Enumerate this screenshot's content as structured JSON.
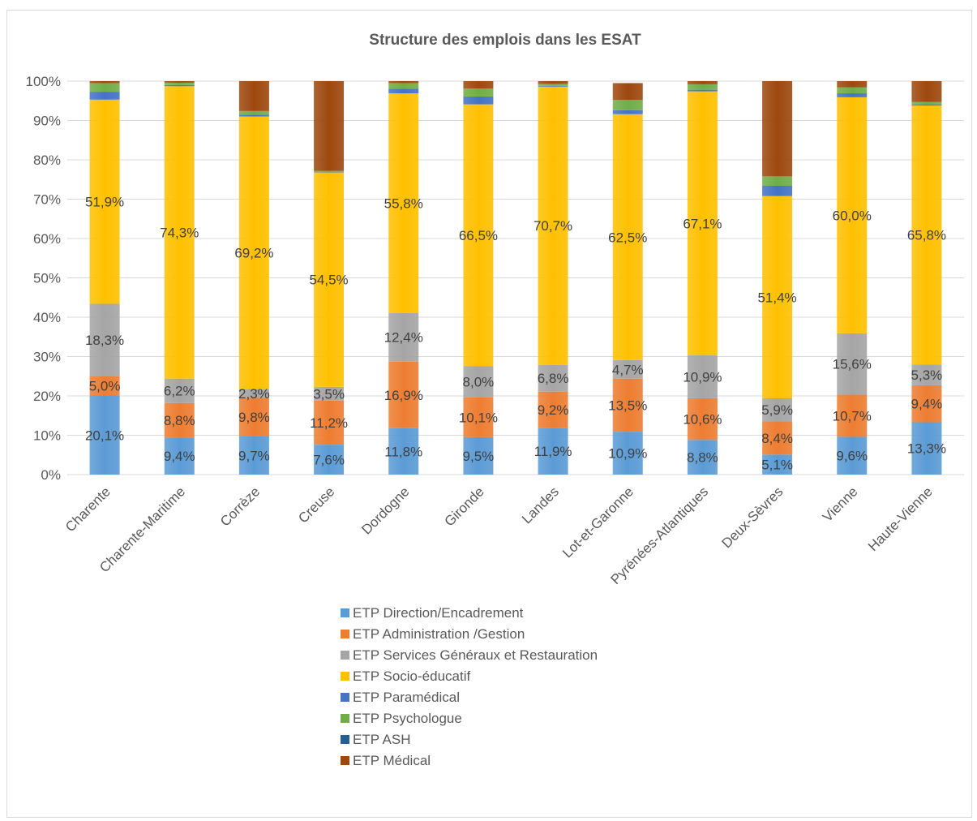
{
  "chart_data": {
    "type": "bar",
    "stacked": true,
    "percent": true,
    "title": "Structure des emplois dans les ESAT",
    "xlabel": "",
    "ylabel": "",
    "ylim": [
      0,
      100
    ],
    "y_ticks": [
      "0%",
      "10%",
      "20%",
      "30%",
      "40%",
      "50%",
      "60%",
      "70%",
      "80%",
      "90%",
      "100%"
    ],
    "grid": true,
    "legend_position": "bottom",
    "categories": [
      "Charente",
      "Charente-Maritime",
      "Corrèze",
      "Creuse",
      "Dordogne",
      "Gironde",
      "Landes",
      "Lot-et-Garonne",
      "Pyrénées-Atlantiques",
      "Deux-Sèvres",
      "Vienne",
      "Haute-Vienne"
    ],
    "series": [
      {
        "name": "ETP Direction/Encadrement",
        "color": "#5b9bd5",
        "values": [
          20.1,
          9.4,
          9.7,
          7.6,
          11.8,
          9.5,
          11.9,
          10.9,
          8.8,
          5.1,
          9.6,
          13.3
        ],
        "labels": [
          "20,1%",
          "9,4%",
          "9,7%",
          "7,6%",
          "11,8%",
          "9,5%",
          "11,9%",
          "10,9%",
          "8,8%",
          "5,1%",
          "9,6%",
          "13,3%"
        ]
      },
      {
        "name": "ETP Administration /Gestion",
        "color": "#ed7d31",
        "values": [
          5.0,
          8.8,
          9.8,
          11.2,
          16.9,
          10.1,
          9.2,
          13.5,
          10.6,
          8.4,
          10.7,
          9.4
        ],
        "labels": [
          "5,0%",
          "8,8%",
          "9,8%",
          "11,2%",
          "16,9%",
          "10,1%",
          "9,2%",
          "13,5%",
          "10,6%",
          "8,4%",
          "10,7%",
          "9,4%"
        ]
      },
      {
        "name": "ETP Services Généraux et Restauration",
        "color": "#a5a5a5",
        "values": [
          18.3,
          6.2,
          2.3,
          3.5,
          12.4,
          8.0,
          6.8,
          4.7,
          10.9,
          5.9,
          15.6,
          5.3
        ],
        "labels": [
          "18,3%",
          "6,2%",
          "2,3%",
          "3,5%",
          "12,4%",
          "8,0%",
          "6,8%",
          "4,7%",
          "10,9%",
          "5,9%",
          "15,6%",
          "5,3%"
        ]
      },
      {
        "name": "ETP Socio-éducatif",
        "color": "#ffc000",
        "values": [
          51.9,
          74.3,
          69.2,
          54.5,
          55.8,
          66.5,
          70.7,
          62.5,
          67.1,
          51.4,
          60.0,
          65.8
        ],
        "labels": [
          "51,9%",
          "74,3%",
          "69,2%",
          "54,5%",
          "55,8%",
          "66,5%",
          "70,7%",
          "62,5%",
          "67,1%",
          "51,4%",
          "60,0%",
          "65,8%"
        ]
      },
      {
        "name": "ETP Paramédical",
        "color": "#4472c4",
        "values": [
          2.0,
          0.3,
          0.5,
          0.1,
          1.2,
          2.0,
          0.2,
          1.0,
          0.4,
          2.6,
          1.0,
          0.3
        ]
      },
      {
        "name": "ETP Psychologue",
        "color": "#70ad47",
        "values": [
          2.2,
          0.6,
          0.9,
          0.3,
          1.4,
          2.0,
          0.5,
          2.6,
          1.4,
          2.4,
          1.5,
          0.6
        ]
      },
      {
        "name": "ETP ASH",
        "color": "#255e91",
        "values": [
          0.0,
          0.0,
          0.0,
          0.0,
          0.0,
          0.0,
          0.0,
          0.0,
          0.0,
          0.0,
          0.0,
          0.0
        ]
      },
      {
        "name": "ETP Médical",
        "color": "#9e480e",
        "values": [
          0.5,
          0.4,
          7.6,
          22.8,
          0.5,
          1.9,
          0.7,
          4.3,
          0.8,
          24.2,
          1.6,
          5.3
        ]
      }
    ]
  }
}
